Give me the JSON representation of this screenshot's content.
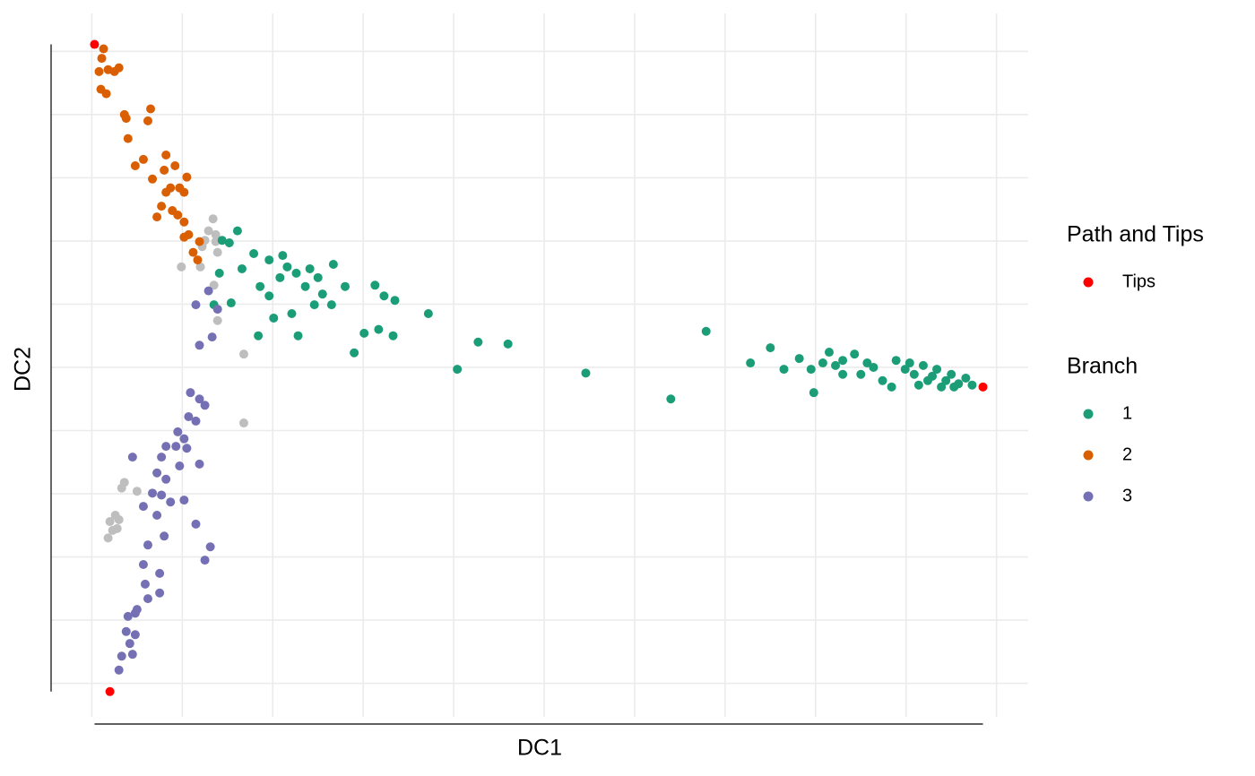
{
  "chart_data": {
    "type": "scatter",
    "x_label": "DC1",
    "y_label": "DC2",
    "xlim": [
      -0.45,
      10.35
    ],
    "ylim": [
      -5.53,
      5.6
    ],
    "xticks": [
      0,
      1,
      2,
      3,
      4,
      5,
      6,
      7,
      8,
      9,
      10
    ],
    "yticks": [
      -5,
      -4,
      -3,
      -2,
      -1,
      0,
      1,
      2,
      3,
      4,
      5
    ],
    "grid": true,
    "legend_position": "right",
    "series": [
      {
        "color": "#bebebe",
        "x": [
          1.34,
          1.29,
          1.37,
          1.25,
          1.37,
          1.22,
          1.39,
          0.99,
          1.2,
          1.35,
          1.39,
          1.68,
          1.68,
          0.36,
          0.33,
          0.5,
          0.26,
          0.2,
          0.3,
          0.23,
          0.18,
          0.28
        ],
        "values": [
          2.35,
          2.16,
          2.1,
          2.01,
          1.99,
          1.91,
          1.82,
          1.59,
          1.59,
          1.3,
          0.74,
          0.21,
          -0.88,
          -1.82,
          -1.91,
          -1.96,
          -2.34,
          -2.44,
          -2.41,
          -2.58,
          -2.7,
          -2.55
        ]
      }
    ],
    "legend_groups": [
      {
        "title": "Branch",
        "series": [
          {
            "name": "1",
            "color": "#1b9e77",
            "x": [
              1.44,
              1.61,
              1.52,
              1.79,
              1.96,
              2.11,
              2.16,
              2.26,
              2.41,
              2.67,
              2.8,
              2.55,
              2.46,
              2.28,
              2.01,
              1.84,
              1.66,
              1.41,
              1.54,
              1.35,
              1.96,
              2.08,
              1.86,
              2.21,
              2.36,
              2.5,
              2.65,
              3.13,
              3.23,
              3.35,
              3.72,
              3.01,
              3.17,
              3.33,
              2.9,
              4.04,
              4.27,
              4.6,
              5.46,
              6.4,
              6.79,
              7.28,
              7.5,
              7.65,
              7.82,
              7.95,
              7.98,
              8.08,
              8.15,
              8.22,
              8.3,
              8.43,
              8.5,
              8.57,
              8.64,
              8.74,
              8.84,
              8.89,
              8.99,
              9.09,
              9.14,
              9.19,
              9.29,
              9.34,
              9.44,
              9.5,
              9.58,
              9.66,
              9.73,
              9.24,
              9.39,
              9.53,
              8.3,
              9.04
            ],
            "values": [
              2.01,
              2.16,
              1.97,
              1.8,
              1.7,
              1.77,
              1.59,
              1.49,
              1.56,
              1.63,
              1.28,
              1.16,
              0.99,
              0.5,
              0.78,
              0.5,
              1.56,
              1.49,
              1.02,
              0.99,
              1.13,
              1.42,
              1.28,
              0.85,
              1.28,
              1.42,
              0.99,
              1.3,
              1.13,
              1.06,
              0.85,
              0.54,
              0.6,
              0.5,
              0.23,
              -0.03,
              0.4,
              0.37,
              -0.09,
              -0.5,
              0.57,
              0.07,
              0.31,
              -0.03,
              0.14,
              -0.03,
              -0.4,
              0.07,
              0.24,
              0.03,
              0.11,
              0.21,
              -0.11,
              0.07,
              0.0,
              -0.21,
              -0.31,
              0.11,
              -0.03,
              -0.11,
              -0.28,
              0.03,
              -0.14,
              -0.03,
              -0.21,
              -0.11,
              -0.26,
              -0.17,
              -0.28,
              -0.21,
              -0.31,
              -0.31,
              -0.11,
              0.07
            ]
          },
          {
            "name": "2",
            "color": "#d95f02",
            "x": [
              0.13,
              0.11,
              0.08,
              0.18,
              0.3,
              0.25,
              0.1,
              0.16,
              0.36,
              0.38,
              0.65,
              0.62,
              0.4,
              0.48,
              0.57,
              0.82,
              0.8,
              0.92,
              1.05,
              0.87,
              0.97,
              0.82,
              1.02,
              0.77,
              0.89,
              0.72,
              0.95,
              1.02,
              1.07,
              1.02,
              1.19,
              1.17,
              1.12,
              0.67
            ],
            "values": [
              5.04,
              4.89,
              4.68,
              4.71,
              4.74,
              4.68,
              4.4,
              4.33,
              4.0,
              3.94,
              4.09,
              3.9,
              3.62,
              3.19,
              3.29,
              3.36,
              3.12,
              3.19,
              3.01,
              2.84,
              2.84,
              2.77,
              2.77,
              2.55,
              2.48,
              2.38,
              2.41,
              2.3,
              2.1,
              2.06,
              1.99,
              1.7,
              1.82,
              2.98
            ]
          },
          {
            "name": "3",
            "color": "#7570b3",
            "x": [
              1.15,
              1.29,
              1.39,
              1.33,
              1.19,
              1.09,
              1.19,
              1.25,
              1.07,
              1.15,
              0.95,
              1.02,
              0.93,
              1.05,
              0.82,
              0.77,
              0.97,
              1.19,
              0.72,
              0.82,
              0.67,
              0.77,
              0.87,
              1.02,
              0.57,
              0.72,
              1.15,
              0.8,
              0.62,
              1.31,
              1.25,
              0.57,
              0.75,
              0.59,
              0.75,
              0.62,
              0.5,
              0.4,
              0.48,
              0.38,
              0.48,
              0.42,
              0.33,
              0.45,
              0.3,
              0.45
            ],
            "values": [
              0.99,
              1.21,
              0.92,
              0.48,
              0.35,
              -0.4,
              -0.5,
              -0.6,
              -0.78,
              -0.85,
              -1.02,
              -1.13,
              -1.25,
              -1.28,
              -1.25,
              -1.42,
              -1.56,
              -1.53,
              -1.67,
              -1.77,
              -1.99,
              -2.02,
              -2.13,
              -2.1,
              -2.2,
              -2.34,
              -2.48,
              -2.67,
              -2.81,
              -2.84,
              -3.05,
              -3.12,
              -3.26,
              -3.43,
              -3.57,
              -3.66,
              -3.83,
              -3.94,
              -3.89,
              -4.18,
              -4.23,
              -4.37,
              -4.57,
              -4.54,
              -4.79,
              -1.42
            ]
          }
        ]
      },
      {
        "title": "Path and Tips",
        "series": [
          {
            "name": "Tips",
            "color": "#ff0000",
            "x": [
              0.03,
              9.85,
              0.2
            ],
            "values": [
              5.11,
              -0.31,
              -5.13
            ]
          }
        ]
      }
    ]
  }
}
